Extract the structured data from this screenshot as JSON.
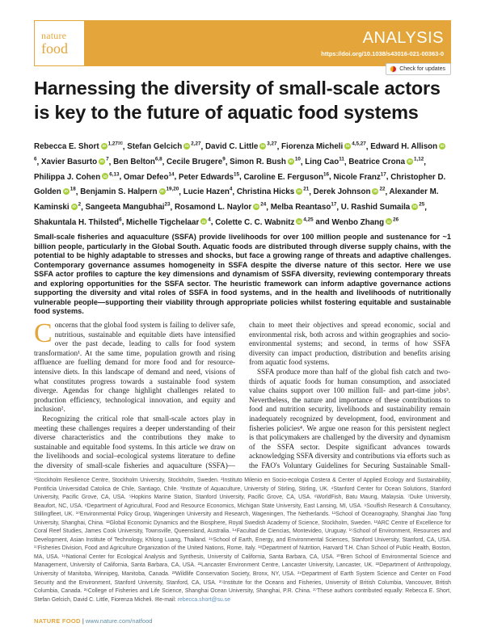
{
  "header": {
    "logo_line1": "nature",
    "logo_line2": "food",
    "article_type": "ANALYSIS",
    "doi": "https://doi.org/10.1038/s43016-021-00363-0",
    "check_updates_label": "Check for updates",
    "banner_color": "#E4A63B",
    "orcid_green": "#A6CE39"
  },
  "title": "Harnessing the diversity of small-scale actors is key to the future of aquatic food systems",
  "authors": [
    {
      "name": "Rebecca E. Short",
      "orcid": true,
      "sup": "1,27",
      "email": true
    },
    {
      "name": "Stefan Gelcich",
      "orcid": true,
      "sup": "2,27"
    },
    {
      "name": "David C. Little",
      "orcid": true,
      "sup": "3,27"
    },
    {
      "name": "Fiorenza Micheli",
      "orcid": true,
      "sup": "4,5,27"
    },
    {
      "name": "Edward H. Allison",
      "orcid": true,
      "sup": "6"
    },
    {
      "name": "Xavier Basurto",
      "orcid": true,
      "sup": "7"
    },
    {
      "name": "Ben Belton",
      "orcid": false,
      "sup": "6,8"
    },
    {
      "name": "Cecile Brugere",
      "orcid": false,
      "sup": "9"
    },
    {
      "name": "Simon R. Bush",
      "orcid": true,
      "sup": "10"
    },
    {
      "name": "Ling Cao",
      "orcid": false,
      "sup": "11"
    },
    {
      "name": "Beatrice Crona",
      "orcid": true,
      "sup": "1,12"
    },
    {
      "name": "Philippa J. Cohen",
      "orcid": true,
      "sup": "6,13"
    },
    {
      "name": "Omar Defeo",
      "orcid": false,
      "sup": "14"
    },
    {
      "name": "Peter Edwards",
      "orcid": false,
      "sup": "15"
    },
    {
      "name": "Caroline E. Ferguson",
      "orcid": false,
      "sup": "16"
    },
    {
      "name": "Nicole Franz",
      "orcid": false,
      "sup": "17"
    },
    {
      "name": "Christopher D. Golden",
      "orcid": true,
      "sup": "18"
    },
    {
      "name": "Benjamin S. Halpern",
      "orcid": true,
      "sup": "19,20"
    },
    {
      "name": "Lucie Hazen",
      "orcid": false,
      "sup": "4"
    },
    {
      "name": "Christina Hicks",
      "orcid": true,
      "sup": "21"
    },
    {
      "name": "Derek Johnson",
      "orcid": true,
      "sup": "22"
    },
    {
      "name": "Alexander M. Kaminski",
      "orcid": true,
      "sup": "2"
    },
    {
      "name": "Sangeeta Mangubhai",
      "orcid": false,
      "sup": "23"
    },
    {
      "name": "Rosamond L. Naylor",
      "orcid": true,
      "sup": "24"
    },
    {
      "name": "Melba Reantaso",
      "orcid": false,
      "sup": "17"
    },
    {
      "name": "U. Rashid Sumaila",
      "orcid": true,
      "sup": "25"
    },
    {
      "name": "Shakuntala H. Thilsted",
      "orcid": false,
      "sup": "6"
    },
    {
      "name": "Michelle Tigchelaar",
      "orcid": true,
      "sup": "4"
    },
    {
      "name": "Colette C. C. Wabnitz",
      "orcid": true,
      "sup": "4,25"
    },
    {
      "name": "Wenbo Zhang",
      "orcid": true,
      "sup": "26"
    }
  ],
  "abstract": "Small-scale fisheries and aquaculture (SSFA) provide livelihoods for over 100 million people and sustenance for ~1 billion people, particularly in the Global South. Aquatic foods are distributed through diverse supply chains, with the potential to be highly adaptable to stresses and shocks, but face a growing range of threats and adaptive challenges. Contemporary governance assumes homogeneity in SSFA despite the diverse nature of this sector. Here we use SSFA actor profiles to capture the key dimensions and dynamism of SSFA diversity, reviewing contemporary threats and exploring opportunities for the SSFA sector. The heuristic framework can inform adaptive governance actions supporting the diversity and vital roles of SSFA in food systems, and in the health and livelihoods of nutritionally vulnerable people—supporting their viability through appropriate policies whilst fostering equitable and sustainable food systems.",
  "body": {
    "left_column": [
      "Concerns that the global food system is failing to deliver safe, nutritious, sustainable and equitable diets have intensified over the past decade, leading to calls for food system transformation¹. At the same time, population growth and rising affluence are fuelling demand for more food and for resource-intensive diets. In this landscape of demand and need, visions of what constitutes progress towards a sustainable food system diverge. Agendas for change highlight challenges related to production efficiency, technological innovation, and equity and inclusion².",
      "Recognizing the critical role that small-scale actors play in meeting these challenges requires a deeper understanding of their diverse characteristics and the contributions they make to sustainable and equitable food systems. In this article we draw on the livelihoods and social–ecological systems literature to define the diversity of small-scale fisheries and aquaculture (SSFA)—first, in terms of the suite of strategies used by actors throughout the value"
    ],
    "right_column": [
      "chain to meet their objectives and spread economic, social and environmental risk, both across and within geographies and socio-environmental systems; and second, in terms of how SSFA diversity can impact production, distribution and benefits arising from aquatic food systems.",
      "SSFA produce more than half of the global fish catch and two-thirds of aquatic foods for human consumption, and associated value chains support over 100 million full- and part-time jobs³. Nevertheless, the nature and importance of these contributions to food and nutrition security, livelihoods and sustainability remain inadequately recognized by development, food, environment and fisheries policies⁴. We argue one reason for this persistent neglect is that policymakers are challenged by the diversity and dynamism of the SSFA sector. Despite significant advances towards acknowledging SSFA diversity and contributions via efforts such as the FAO's Voluntary Guidelines for Securing Sustainable Small-scale"
    ]
  },
  "affiliations": {
    "text": "¹Stockholm Resilience Centre, Stockholm University, Stockholm, Sweden. ²Instituto Milenio en Socio-ecologia Costera & Center of Applied Ecology and Sustainability, Pontificia Universidad Catolica de Chile, Santiago, Chile. ³Institute of Aquaculture, University of Stirling, Stirling, UK. ⁴Stanford Center for Ocean Solutions, Stanford University, Pacific Grove, CA, USA. ⁵Hopkins Marine Station, Stanford University, Pacific Grove, CA, USA. ⁶WorldFish, Batu Maung, Malaysia. ⁷Duke University, Beaufort, NC, USA. ⁸Department of Agricultural, Food and Resource Economics, Michigan State University, East Lansing, MI, USA. ⁹Soulfish Research & Consultancy, Stillingfleet, UK. ¹⁰Environmental Policy Group, Wageningen University and Research, Wageningen, The Netherlands. ¹¹School of Oceanography, Shanghai Jiao Tong University, Shanghai, China. ¹²Global Economic Dynamics and the Biosphere, Royal Swedish Academy of Science, Stockholm, Sweden. ¹³ARC Centre of Excellence for Coral Reef Studies, James Cook University, Townsville, Queensland, Australia. ¹⁴Facultad de Ciencias, Montevideo, Uruguay. ¹⁵School of Environment, Resources and Development, Asian Institute of Technology, Khlong Luang, Thailand. ¹⁶School of Earth, Energy, and Environmental Sciences, Stanford University, Stanford, CA, USA. ¹⁷Fisheries Division, Food and Agriculture Organization of the United Nations, Rome, Italy. ¹⁸Department of Nutrition, Harvard T.H. Chan School of Public Health, Boston, MA, USA. ¹⁹National Center for Ecological Analysis and Synthesis, University of California, Santa Barbara, CA, USA. ²⁰Bren School of Environmental Science and Management, University of California, Santa Barbara, CA, USA. ²¹Lancaster Environment Centre, Lancaster University, Lancaster, UK. ²²Department of Anthropology, University of Manitoba, Winnipeg, Manitoba, Canada. ²³Wildlife Conservation Society, Bronx, NY, USA. ²⁴Department of Earth System Science and Center on Food Security and the Environment, Stanford University, Stanford, CA, USA. ²⁵Institute for the Oceans and Fisheries, University of British Columbia, Vancouver, British Columbia, Canada. ²⁶College of Fisheries and Life Science, Shanghai Ocean University, Shanghai, P.R. China. ²⁷These authors contributed equally: Rebecca E. Short, Stefan Gelcich, David C. Little, Fiorenza Micheli. ",
    "email_label": "✉e-mail: ",
    "email": "rebecca.short@su.se"
  },
  "footer": {
    "journal": "NATURE FOOD",
    "separator": " | ",
    "url": "www.nature.com/natfood"
  }
}
